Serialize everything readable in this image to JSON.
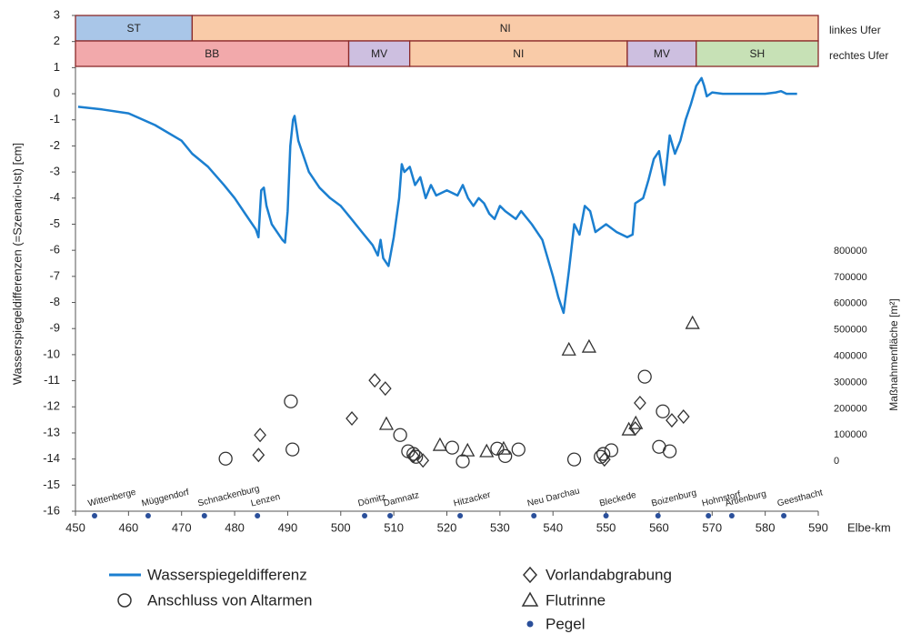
{
  "chart_data": {
    "type": "line",
    "xlabel": "Elbe-km",
    "ylabel": "Wasserspiegeldifferenzen (=Szenario-Ist) [cm]",
    "y2label": "Maßnahmenfläche [m²]",
    "xlim": [
      450,
      590
    ],
    "xticks": [
      450,
      460,
      470,
      480,
      490,
      500,
      510,
      520,
      530,
      540,
      550,
      560,
      570,
      580,
      590
    ],
    "ylim": [
      -16,
      3
    ],
    "yticks": [
      -16,
      -15,
      -14,
      -13,
      -12,
      -11,
      -10,
      -9,
      -8,
      -7,
      -6,
      -5,
      -4,
      -3,
      -2,
      -1,
      0,
      1,
      2,
      3
    ],
    "y2lim": [
      -190000,
      1697000
    ],
    "y2ticks": [
      0,
      100000,
      200000,
      300000,
      400000,
      500000,
      600000,
      700000,
      800000
    ],
    "regions": [
      {
        "label": "linkes Ufer",
        "segments": [
          {
            "label": "ST",
            "from": 450,
            "to": 472,
            "color": "#a9c6e8"
          },
          {
            "label": "NI",
            "from": 472,
            "to": 590,
            "color": "#f9cba8"
          }
        ]
      },
      {
        "label": "rechtes Ufer",
        "segments": [
          {
            "label": "BB",
            "from": 450,
            "to": 501.5,
            "color": "#f2a9ab"
          },
          {
            "label": "MV",
            "from": 501.5,
            "to": 513,
            "color": "#cdbfe0"
          },
          {
            "label": "NI",
            "from": 513,
            "to": 554,
            "color": "#f9cba8"
          },
          {
            "label": "MV",
            "from": 554,
            "to": 567,
            "color": "#cdbfe0"
          },
          {
            "label": "SH",
            "from": 567,
            "to": 590,
            "color": "#c7e1b6"
          }
        ]
      }
    ],
    "series": [
      {
        "name": "Wasserspiegeldifferenz",
        "marker": "line",
        "color": "#1b7fd0",
        "x": [
          450.5,
          455,
          460,
          465,
          470,
          472,
          475,
          478,
          480,
          482,
          484,
          484.5,
          485,
          485.5,
          486,
          487,
          489,
          489.5,
          490,
          490.5,
          491,
          491.3,
          492,
          494,
          496,
          498,
          500,
          502,
          504,
          506,
          507,
          507.5,
          508,
          509,
          510,
          511,
          511.5,
          512,
          513,
          514,
          515,
          516,
          517,
          518,
          520,
          522,
          523,
          524,
          525,
          526,
          527,
          528,
          529,
          530,
          531,
          533,
          534,
          536,
          538,
          540,
          541,
          542,
          543,
          544,
          545,
          546,
          547,
          548,
          550,
          552,
          554,
          555,
          555.5,
          557,
          558,
          559,
          560,
          561,
          562,
          563,
          564,
          565,
          566,
          567,
          568,
          568.5,
          569,
          570,
          572,
          575,
          580,
          582,
          583,
          584,
          586
        ],
        "values": [
          -0.5,
          -0.6,
          -0.75,
          -1.2,
          -1.8,
          -2.3,
          -2.8,
          -3.5,
          -4.0,
          -4.6,
          -5.2,
          -5.5,
          -3.7,
          -3.6,
          -4.3,
          -5.0,
          -5.6,
          -5.7,
          -4.5,
          -2.0,
          -1.0,
          -0.85,
          -1.8,
          -3.0,
          -3.6,
          -4.0,
          -4.3,
          -4.8,
          -5.3,
          -5.8,
          -6.2,
          -5.6,
          -6.3,
          -6.6,
          -5.5,
          -4.0,
          -2.7,
          -3.0,
          -2.8,
          -3.5,
          -3.2,
          -4.0,
          -3.5,
          -3.9,
          -3.7,
          -3.9,
          -3.5,
          -4.0,
          -4.3,
          -4.0,
          -4.2,
          -4.6,
          -4.8,
          -4.3,
          -4.5,
          -4.8,
          -4.5,
          -5.0,
          -5.6,
          -7.0,
          -7.8,
          -8.4,
          -6.8,
          -5.0,
          -5.4,
          -4.3,
          -4.5,
          -5.3,
          -5.0,
          -5.3,
          -5.5,
          -5.4,
          -4.2,
          -4.0,
          -3.3,
          -2.5,
          -2.2,
          -3.5,
          -1.6,
          -2.3,
          -1.8,
          -1.0,
          -0.4,
          0.3,
          0.6,
          0.3,
          -0.1,
          0.05,
          0,
          0,
          0,
          0.05,
          0.1,
          0,
          0
        ]
      },
      {
        "name": "Anschluss von Altarmen",
        "marker": "circle",
        "color": "#333333",
        "axis": "y2",
        "x": [
          478.3,
          490.6,
          490.9,
          511.2,
          512.7,
          513.7,
          514.2,
          521,
          523,
          529.5,
          531,
          533.5,
          544,
          549,
          549.5,
          551,
          557.3,
          560.7,
          560,
          562
        ],
        "values": [
          10000,
          228000,
          45000,
          100000,
          38000,
          28000,
          17000,
          52000,
          0,
          48000,
          20000,
          45000,
          7000,
          17000,
          28000,
          42000,
          322000,
          190000,
          55000,
          38000
        ]
      },
      {
        "name": "Vorlandabgrabung",
        "marker": "diamond",
        "color": "#333333",
        "axis": "y2",
        "x": [
          484.8,
          484.5,
          502.1,
          506.4,
          508.4,
          513.7,
          515.5,
          549.7,
          555.5,
          556.4,
          562.4,
          564.6
        ],
        "values": [
          100000,
          24000,
          163000,
          308000,
          277000,
          21000,
          3000,
          7000,
          125000,
          222000,
          156000,
          170000
        ]
      },
      {
        "name": "Flutrinne",
        "marker": "triangle",
        "color": "#333333",
        "axis": "y2",
        "x": [
          508.6,
          518.7,
          523.9,
          527.5,
          530.7,
          543,
          546.8,
          554.3,
          555.6,
          566.3
        ],
        "values": [
          139000,
          59000,
          38000,
          35000,
          45000,
          422000,
          433000,
          118000,
          142000,
          523000
        ]
      },
      {
        "name": "Pegel",
        "marker": "dot",
        "color": "#2a4f9a",
        "labels": [
          "Wittenberge",
          "Müggendorf",
          "Schnackenburg",
          "Lenzen",
          "Dömitz",
          "Damnatz",
          "Hitzacker",
          "Neu Darchau",
          "Bleckede",
          "Boizenburg",
          "Hohnstorf",
          "Artlenburg",
          "Geesthacht"
        ],
        "x": [
          453.6,
          463.7,
          474.3,
          484.3,
          504.5,
          509.3,
          522.5,
          536.4,
          550,
          559.8,
          569.3,
          573.7,
          583.5
        ]
      }
    ]
  }
}
